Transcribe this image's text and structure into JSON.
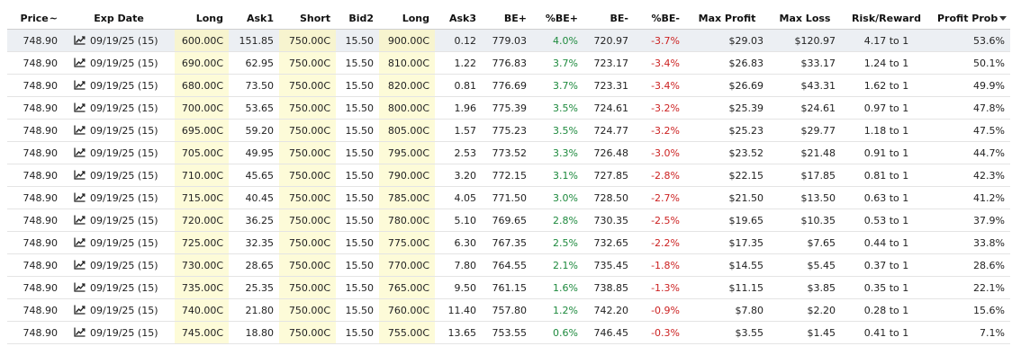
{
  "columns": [
    {
      "key": "price",
      "label": "Price",
      "suffix": "~"
    },
    {
      "key": "exp",
      "label": "Exp Date"
    },
    {
      "key": "long1",
      "label": "Long"
    },
    {
      "key": "ask1",
      "label": "Ask1"
    },
    {
      "key": "short",
      "label": "Short"
    },
    {
      "key": "bid2",
      "label": "Bid2"
    },
    {
      "key": "long2",
      "label": "Long"
    },
    {
      "key": "ask3",
      "label": "Ask3"
    },
    {
      "key": "be_plus",
      "label": "BE+"
    },
    {
      "key": "pct_be_plus",
      "label": "%BE+"
    },
    {
      "key": "be_minus",
      "label": "BE-"
    },
    {
      "key": "pct_be_minus",
      "label": "%BE-"
    },
    {
      "key": "max_profit",
      "label": "Max Profit"
    },
    {
      "key": "max_loss",
      "label": "Max Loss"
    },
    {
      "key": "risk_reward",
      "label": "Risk/Reward"
    },
    {
      "key": "profit_prob",
      "label": "Profit Prob"
    }
  ],
  "icons": {
    "exp_date": "line-chart-icon",
    "sort": "sort-descending-caret-icon"
  },
  "colors": {
    "positive": "#1e8a3e",
    "negative": "#cc2222",
    "highlight": "#fdfbd8"
  },
  "rows": [
    {
      "price": "748.90",
      "exp": "09/19/25 (15)",
      "long1": "600.00C",
      "ask1": "151.85",
      "short": "750.00C",
      "bid2": "15.50",
      "long2": "900.00C",
      "ask3": "0.12",
      "be_plus": "779.03",
      "pct_be_plus": "4.0%",
      "be_minus": "720.97",
      "pct_be_minus": "-3.7%",
      "max_profit": "$29.03",
      "max_loss": "$120.97",
      "risk_reward": "4.17 to 1",
      "profit_prob": "53.6%"
    },
    {
      "price": "748.90",
      "exp": "09/19/25 (15)",
      "long1": "690.00C",
      "ask1": "62.95",
      "short": "750.00C",
      "bid2": "15.50",
      "long2": "810.00C",
      "ask3": "1.22",
      "be_plus": "776.83",
      "pct_be_plus": "3.7%",
      "be_minus": "723.17",
      "pct_be_minus": "-3.4%",
      "max_profit": "$26.83",
      "max_loss": "$33.17",
      "risk_reward": "1.24 to 1",
      "profit_prob": "50.1%"
    },
    {
      "price": "748.90",
      "exp": "09/19/25 (15)",
      "long1": "680.00C",
      "ask1": "73.50",
      "short": "750.00C",
      "bid2": "15.50",
      "long2": "820.00C",
      "ask3": "0.81",
      "be_plus": "776.69",
      "pct_be_plus": "3.7%",
      "be_minus": "723.31",
      "pct_be_minus": "-3.4%",
      "max_profit": "$26.69",
      "max_loss": "$43.31",
      "risk_reward": "1.62 to 1",
      "profit_prob": "49.9%"
    },
    {
      "price": "748.90",
      "exp": "09/19/25 (15)",
      "long1": "700.00C",
      "ask1": "53.65",
      "short": "750.00C",
      "bid2": "15.50",
      "long2": "800.00C",
      "ask3": "1.96",
      "be_plus": "775.39",
      "pct_be_plus": "3.5%",
      "be_minus": "724.61",
      "pct_be_minus": "-3.2%",
      "max_profit": "$25.39",
      "max_loss": "$24.61",
      "risk_reward": "0.97 to 1",
      "profit_prob": "47.8%"
    },
    {
      "price": "748.90",
      "exp": "09/19/25 (15)",
      "long1": "695.00C",
      "ask1": "59.20",
      "short": "750.00C",
      "bid2": "15.50",
      "long2": "805.00C",
      "ask3": "1.57",
      "be_plus": "775.23",
      "pct_be_plus": "3.5%",
      "be_minus": "724.77",
      "pct_be_minus": "-3.2%",
      "max_profit": "$25.23",
      "max_loss": "$29.77",
      "risk_reward": "1.18 to 1",
      "profit_prob": "47.5%"
    },
    {
      "price": "748.90",
      "exp": "09/19/25 (15)",
      "long1": "705.00C",
      "ask1": "49.95",
      "short": "750.00C",
      "bid2": "15.50",
      "long2": "795.00C",
      "ask3": "2.53",
      "be_plus": "773.52",
      "pct_be_plus": "3.3%",
      "be_minus": "726.48",
      "pct_be_minus": "-3.0%",
      "max_profit": "$23.52",
      "max_loss": "$21.48",
      "risk_reward": "0.91 to 1",
      "profit_prob": "44.7%"
    },
    {
      "price": "748.90",
      "exp": "09/19/25 (15)",
      "long1": "710.00C",
      "ask1": "45.65",
      "short": "750.00C",
      "bid2": "15.50",
      "long2": "790.00C",
      "ask3": "3.20",
      "be_plus": "772.15",
      "pct_be_plus": "3.1%",
      "be_minus": "727.85",
      "pct_be_minus": "-2.8%",
      "max_profit": "$22.15",
      "max_loss": "$17.85",
      "risk_reward": "0.81 to 1",
      "profit_prob": "42.3%"
    },
    {
      "price": "748.90",
      "exp": "09/19/25 (15)",
      "long1": "715.00C",
      "ask1": "40.45",
      "short": "750.00C",
      "bid2": "15.50",
      "long2": "785.00C",
      "ask3": "4.05",
      "be_plus": "771.50",
      "pct_be_plus": "3.0%",
      "be_minus": "728.50",
      "pct_be_minus": "-2.7%",
      "max_profit": "$21.50",
      "max_loss": "$13.50",
      "risk_reward": "0.63 to 1",
      "profit_prob": "41.2%"
    },
    {
      "price": "748.90",
      "exp": "09/19/25 (15)",
      "long1": "720.00C",
      "ask1": "36.25",
      "short": "750.00C",
      "bid2": "15.50",
      "long2": "780.00C",
      "ask3": "5.10",
      "be_plus": "769.65",
      "pct_be_plus": "2.8%",
      "be_minus": "730.35",
      "pct_be_minus": "-2.5%",
      "max_profit": "$19.65",
      "max_loss": "$10.35",
      "risk_reward": "0.53 to 1",
      "profit_prob": "37.9%"
    },
    {
      "price": "748.90",
      "exp": "09/19/25 (15)",
      "long1": "725.00C",
      "ask1": "32.35",
      "short": "750.00C",
      "bid2": "15.50",
      "long2": "775.00C",
      "ask3": "6.30",
      "be_plus": "767.35",
      "pct_be_plus": "2.5%",
      "be_minus": "732.65",
      "pct_be_minus": "-2.2%",
      "max_profit": "$17.35",
      "max_loss": "$7.65",
      "risk_reward": "0.44 to 1",
      "profit_prob": "33.8%"
    },
    {
      "price": "748.90",
      "exp": "09/19/25 (15)",
      "long1": "730.00C",
      "ask1": "28.65",
      "short": "750.00C",
      "bid2": "15.50",
      "long2": "770.00C",
      "ask3": "7.80",
      "be_plus": "764.55",
      "pct_be_plus": "2.1%",
      "be_minus": "735.45",
      "pct_be_minus": "-1.8%",
      "max_profit": "$14.55",
      "max_loss": "$5.45",
      "risk_reward": "0.37 to 1",
      "profit_prob": "28.6%"
    },
    {
      "price": "748.90",
      "exp": "09/19/25 (15)",
      "long1": "735.00C",
      "ask1": "25.35",
      "short": "750.00C",
      "bid2": "15.50",
      "long2": "765.00C",
      "ask3": "9.50",
      "be_plus": "761.15",
      "pct_be_plus": "1.6%",
      "be_minus": "738.85",
      "pct_be_minus": "-1.3%",
      "max_profit": "$11.15",
      "max_loss": "$3.85",
      "risk_reward": "0.35 to 1",
      "profit_prob": "22.1%"
    },
    {
      "price": "748.90",
      "exp": "09/19/25 (15)",
      "long1": "740.00C",
      "ask1": "21.80",
      "short": "750.00C",
      "bid2": "15.50",
      "long2": "760.00C",
      "ask3": "11.40",
      "be_plus": "757.80",
      "pct_be_plus": "1.2%",
      "be_minus": "742.20",
      "pct_be_minus": "-0.9%",
      "max_profit": "$7.80",
      "max_loss": "$2.20",
      "risk_reward": "0.28 to 1",
      "profit_prob": "15.6%"
    },
    {
      "price": "748.90",
      "exp": "09/19/25 (15)",
      "long1": "745.00C",
      "ask1": "18.80",
      "short": "750.00C",
      "bid2": "15.50",
      "long2": "755.00C",
      "ask3": "13.65",
      "be_plus": "753.55",
      "pct_be_plus": "0.6%",
      "be_minus": "746.45",
      "pct_be_minus": "-0.3%",
      "max_profit": "$3.55",
      "max_loss": "$1.45",
      "risk_reward": "0.41 to 1",
      "profit_prob": "7.1%"
    }
  ]
}
